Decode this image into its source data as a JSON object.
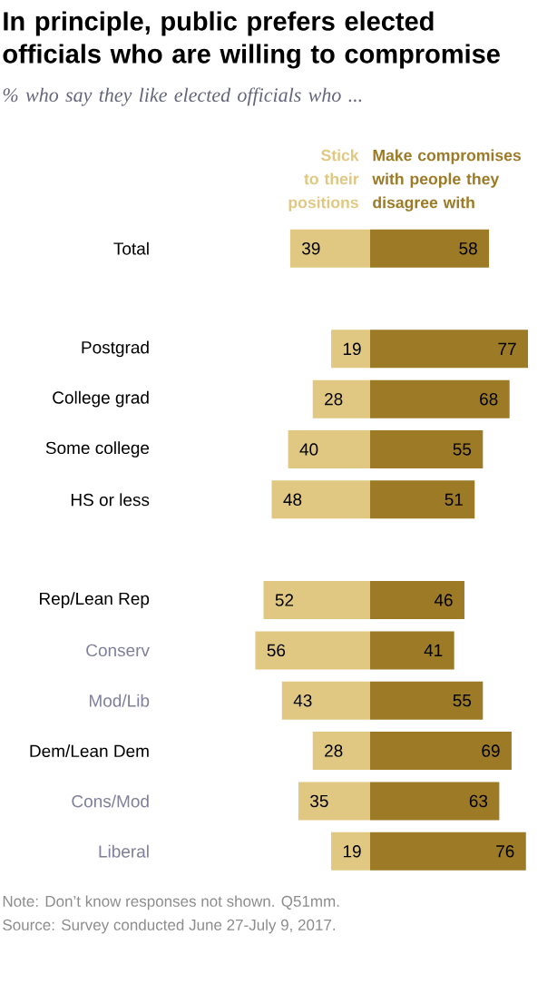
{
  "chart_data": [
    {
      "type": "bar",
      "orientation": "horizontal",
      "title": "In principle, public prefers elected officials who are willing to compromise",
      "subtitle": "% who say they like elected officials who ...",
      "categories": [
        "Total",
        null,
        "Postgrad",
        "College grad",
        "Some college",
        "HS or less",
        null,
        "Rep/Lean Rep",
        "Conserv",
        "Mod/Lib",
        "Dem/Lean Dem",
        "Cons/Mod",
        "Liberal"
      ],
      "series": [
        {
          "name": "Stick to their positions",
          "color": "#e0c882",
          "values": [
            39,
            null,
            19,
            28,
            40,
            48,
            null,
            52,
            56,
            43,
            28,
            35,
            19
          ]
        }
      ],
      "data_labels": true,
      "tick_labels": "y",
      "legend": "top",
      "annotations": [
        "Note: Don’t know responses not shown. Q51mm.",
        "Source: Survey conducted June 27-July 9, 2017."
      ]
    },
    {
      "type": "bar",
      "orientation": "horizontal",
      "categories": [
        null,
        null,
        null,
        null,
        null,
        null,
        null,
        null,
        null,
        null,
        null,
        null,
        null
      ],
      "series": [
        {
          "name": "Make compromises with people they disagree with",
          "color": "#9c7a26",
          "values": [
            58,
            null,
            77,
            68,
            55,
            51,
            null,
            46,
            41,
            55,
            69,
            63,
            76
          ]
        }
      ],
      "data_labels": true,
      "tick_labels": false,
      "legend": "top"
    }
  ]
}
